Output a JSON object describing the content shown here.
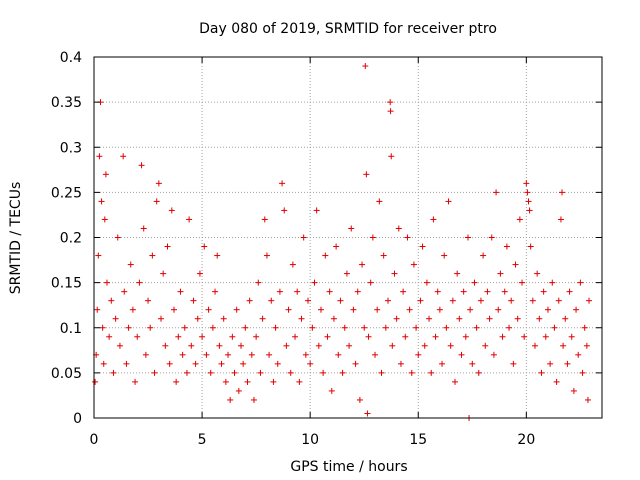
{
  "chart_data": {
    "type": "scatter",
    "title": "Day 080 of 2019, SRMTID for receiver ptro",
    "xlabel": "GPS time / hours",
    "ylabel": "SRMTID / TECUs",
    "xlim": [
      0,
      23.5
    ],
    "ylim": [
      0,
      0.4
    ],
    "xticks": [
      0,
      5,
      10,
      15,
      20
    ],
    "xtick_labels": [
      "0",
      "5",
      "10",
      "15",
      "20"
    ],
    "yticks": [
      0,
      0.05,
      0.1,
      0.15,
      0.2,
      0.25,
      0.3,
      0.35,
      0.4
    ],
    "ytick_labels": [
      "0",
      "0.05",
      "0.1",
      "0.15",
      "0.2",
      "0.25",
      "0.3",
      "0.35",
      "0.4"
    ],
    "grid": true,
    "marker": "+",
    "color": "#e00000",
    "series": [
      {
        "name": "SRMTID",
        "points": [
          [
            0.05,
            0.04
          ],
          [
            0.1,
            0.07
          ],
          [
            0.15,
            0.12
          ],
          [
            0.2,
            0.18
          ],
          [
            0.25,
            0.29
          ],
          [
            0.3,
            0.35
          ],
          [
            0.35,
            0.24
          ],
          [
            0.4,
            0.1
          ],
          [
            0.45,
            0.06
          ],
          [
            0.5,
            0.22
          ],
          [
            0.55,
            0.27
          ],
          [
            0.6,
            0.15
          ],
          [
            0.7,
            0.09
          ],
          [
            0.8,
            0.13
          ],
          [
            0.9,
            0.05
          ],
          [
            1.0,
            0.11
          ],
          [
            1.1,
            0.2
          ],
          [
            1.2,
            0.08
          ],
          [
            1.35,
            0.29
          ],
          [
            1.4,
            0.14
          ],
          [
            1.5,
            0.06
          ],
          [
            1.6,
            0.1
          ],
          [
            1.7,
            0.17
          ],
          [
            1.8,
            0.12
          ],
          [
            1.9,
            0.04
          ],
          [
            2.0,
            0.09
          ],
          [
            2.1,
            0.15
          ],
          [
            2.2,
            0.28
          ],
          [
            2.3,
            0.21
          ],
          [
            2.4,
            0.07
          ],
          [
            2.5,
            0.13
          ],
          [
            2.6,
            0.1
          ],
          [
            2.7,
            0.18
          ],
          [
            2.8,
            0.05
          ],
          [
            2.9,
            0.24
          ],
          [
            3.0,
            0.26
          ],
          [
            3.1,
            0.11
          ],
          [
            3.2,
            0.16
          ],
          [
            3.3,
            0.08
          ],
          [
            3.4,
            0.19
          ],
          [
            3.5,
            0.06
          ],
          [
            3.6,
            0.23
          ],
          [
            3.7,
            0.12
          ],
          [
            3.8,
            0.04
          ],
          [
            3.9,
            0.09
          ],
          [
            4.0,
            0.14
          ],
          [
            4.1,
            0.07
          ],
          [
            4.2,
            0.1
          ],
          [
            4.3,
            0.05
          ],
          [
            4.4,
            0.22
          ],
          [
            4.5,
            0.08
          ],
          [
            4.6,
            0.13
          ],
          [
            4.7,
            0.06
          ],
          [
            4.8,
            0.11
          ],
          [
            4.9,
            0.16
          ],
          [
            5.0,
            0.09
          ],
          [
            5.1,
            0.19
          ],
          [
            5.2,
            0.07
          ],
          [
            5.3,
            0.12
          ],
          [
            5.4,
            0.05
          ],
          [
            5.5,
            0.1
          ],
          [
            5.6,
            0.14
          ],
          [
            5.7,
            0.18
          ],
          [
            5.8,
            0.08
          ],
          [
            5.9,
            0.06
          ],
          [
            6.0,
            0.11
          ],
          [
            6.1,
            0.04
          ],
          [
            6.2,
            0.07
          ],
          [
            6.3,
            0.02
          ],
          [
            6.4,
            0.09
          ],
          [
            6.5,
            0.05
          ],
          [
            6.6,
            0.12
          ],
          [
            6.7,
            0.03
          ],
          [
            6.8,
            0.08
          ],
          [
            6.9,
            0.06
          ],
          [
            7.0,
            0.1
          ],
          [
            7.1,
            0.04
          ],
          [
            7.2,
            0.13
          ],
          [
            7.3,
            0.07
          ],
          [
            7.4,
            0.02
          ],
          [
            7.5,
            0.09
          ],
          [
            7.6,
            0.15
          ],
          [
            7.7,
            0.05
          ],
          [
            7.8,
            0.11
          ],
          [
            7.9,
            0.22
          ],
          [
            8.0,
            0.18
          ],
          [
            8.1,
            0.07
          ],
          [
            8.2,
            0.13
          ],
          [
            8.3,
            0.04
          ],
          [
            8.4,
            0.1
          ],
          [
            8.5,
            0.06
          ],
          [
            8.6,
            0.14
          ],
          [
            8.7,
            0.26
          ],
          [
            8.8,
            0.23
          ],
          [
            8.9,
            0.08
          ],
          [
            9.0,
            0.12
          ],
          [
            9.1,
            0.05
          ],
          [
            9.2,
            0.17
          ],
          [
            9.3,
            0.09
          ],
          [
            9.4,
            0.14
          ],
          [
            9.5,
            0.04
          ],
          [
            9.6,
            0.11
          ],
          [
            9.7,
            0.2
          ],
          [
            9.8,
            0.07
          ],
          [
            9.9,
            0.13
          ],
          [
            10.0,
            0.06
          ],
          [
            10.1,
            0.1
          ],
          [
            10.2,
            0.15
          ],
          [
            10.3,
            0.23
          ],
          [
            10.4,
            0.08
          ],
          [
            10.5,
            0.12
          ],
          [
            10.6,
            0.05
          ],
          [
            10.7,
            0.18
          ],
          [
            10.8,
            0.09
          ],
          [
            10.9,
            0.14
          ],
          [
            11.0,
            0.03
          ],
          [
            11.1,
            0.11
          ],
          [
            11.2,
            0.19
          ],
          [
            11.3,
            0.07
          ],
          [
            11.4,
            0.13
          ],
          [
            11.5,
            0.05
          ],
          [
            11.6,
            0.1
          ],
          [
            11.7,
            0.16
          ],
          [
            11.8,
            0.08
          ],
          [
            11.9,
            0.21
          ],
          [
            12.0,
            0.12
          ],
          [
            12.1,
            0.06
          ],
          [
            12.2,
            0.14
          ],
          [
            12.3,
            0.02
          ],
          [
            12.4,
            0.17
          ],
          [
            12.5,
            0.1
          ],
          [
            12.55,
            0.39
          ],
          [
            12.6,
            0.27
          ],
          [
            12.65,
            0.005
          ],
          [
            12.7,
            0.09
          ],
          [
            12.8,
            0.15
          ],
          [
            12.9,
            0.2
          ],
          [
            13.0,
            0.07
          ],
          [
            13.1,
            0.12
          ],
          [
            13.2,
            0.24
          ],
          [
            13.3,
            0.05
          ],
          [
            13.4,
            0.18
          ],
          [
            13.5,
            0.1
          ],
          [
            13.6,
            0.13
          ],
          [
            13.7,
            0.35
          ],
          [
            13.72,
            0.34
          ],
          [
            13.75,
            0.29
          ],
          [
            13.8,
            0.08
          ],
          [
            13.9,
            0.16
          ],
          [
            14.0,
            0.11
          ],
          [
            14.1,
            0.21
          ],
          [
            14.2,
            0.06
          ],
          [
            14.3,
            0.14
          ],
          [
            14.4,
            0.09
          ],
          [
            14.5,
            0.2
          ],
          [
            14.6,
            0.12
          ],
          [
            14.7,
            0.05
          ],
          [
            14.8,
            0.17
          ],
          [
            14.9,
            0.1
          ],
          [
            15.0,
            0.07
          ],
          [
            15.1,
            0.13
          ],
          [
            15.2,
            0.19
          ],
          [
            15.3,
            0.08
          ],
          [
            15.4,
            0.15
          ],
          [
            15.5,
            0.11
          ],
          [
            15.6,
            0.05
          ],
          [
            15.7,
            0.22
          ],
          [
            15.8,
            0.09
          ],
          [
            15.9,
            0.14
          ],
          [
            16.0,
            0.12
          ],
          [
            16.1,
            0.06
          ],
          [
            16.2,
            0.18
          ],
          [
            16.3,
            0.1
          ],
          [
            16.4,
            0.24
          ],
          [
            16.5,
            0.08
          ],
          [
            16.6,
            0.13
          ],
          [
            16.7,
            0.04
          ],
          [
            16.8,
            0.16
          ],
          [
            16.9,
            0.11
          ],
          [
            17.0,
            0.07
          ],
          [
            17.1,
            0.14
          ],
          [
            17.2,
            0.09
          ],
          [
            17.3,
            0.2
          ],
          [
            17.35,
            0.0
          ],
          [
            17.4,
            0.12
          ],
          [
            17.5,
            0.06
          ],
          [
            17.6,
            0.15
          ],
          [
            17.7,
            0.1
          ],
          [
            17.8,
            0.05
          ],
          [
            17.9,
            0.13
          ],
          [
            18.0,
            0.18
          ],
          [
            18.1,
            0.08
          ],
          [
            18.2,
            0.14
          ],
          [
            18.3,
            0.11
          ],
          [
            18.4,
            0.2
          ],
          [
            18.5,
            0.07
          ],
          [
            18.6,
            0.25
          ],
          [
            18.7,
            0.12
          ],
          [
            18.8,
            0.16
          ],
          [
            18.9,
            0.09
          ],
          [
            19.0,
            0.14
          ],
          [
            19.1,
            0.19
          ],
          [
            19.2,
            0.1
          ],
          [
            19.3,
            0.13
          ],
          [
            19.4,
            0.06
          ],
          [
            19.5,
            0.17
          ],
          [
            19.6,
            0.11
          ],
          [
            19.7,
            0.22
          ],
          [
            19.8,
            0.15
          ],
          [
            19.9,
            0.09
          ],
          [
            20.0,
            0.26
          ],
          [
            20.05,
            0.25
          ],
          [
            20.1,
            0.24
          ],
          [
            20.15,
            0.23
          ],
          [
            20.2,
            0.19
          ],
          [
            20.3,
            0.13
          ],
          [
            20.4,
            0.08
          ],
          [
            20.5,
            0.16
          ],
          [
            20.6,
            0.11
          ],
          [
            20.7,
            0.05
          ],
          [
            20.8,
            0.14
          ],
          [
            20.9,
            0.09
          ],
          [
            21.0,
            0.12
          ],
          [
            21.1,
            0.06
          ],
          [
            21.2,
            0.15
          ],
          [
            21.3,
            0.1
          ],
          [
            21.4,
            0.04
          ],
          [
            21.5,
            0.13
          ],
          [
            21.6,
            0.22
          ],
          [
            21.65,
            0.25
          ],
          [
            21.7,
            0.08
          ],
          [
            21.8,
            0.11
          ],
          [
            21.9,
            0.06
          ],
          [
            22.0,
            0.14
          ],
          [
            22.1,
            0.09
          ],
          [
            22.2,
            0.03
          ],
          [
            22.3,
            0.12
          ],
          [
            22.4,
            0.07
          ],
          [
            22.5,
            0.15
          ],
          [
            22.6,
            0.05
          ],
          [
            22.7,
            0.1
          ],
          [
            22.8,
            0.08
          ],
          [
            22.85,
            0.02
          ],
          [
            22.9,
            0.13
          ]
        ]
      }
    ]
  }
}
